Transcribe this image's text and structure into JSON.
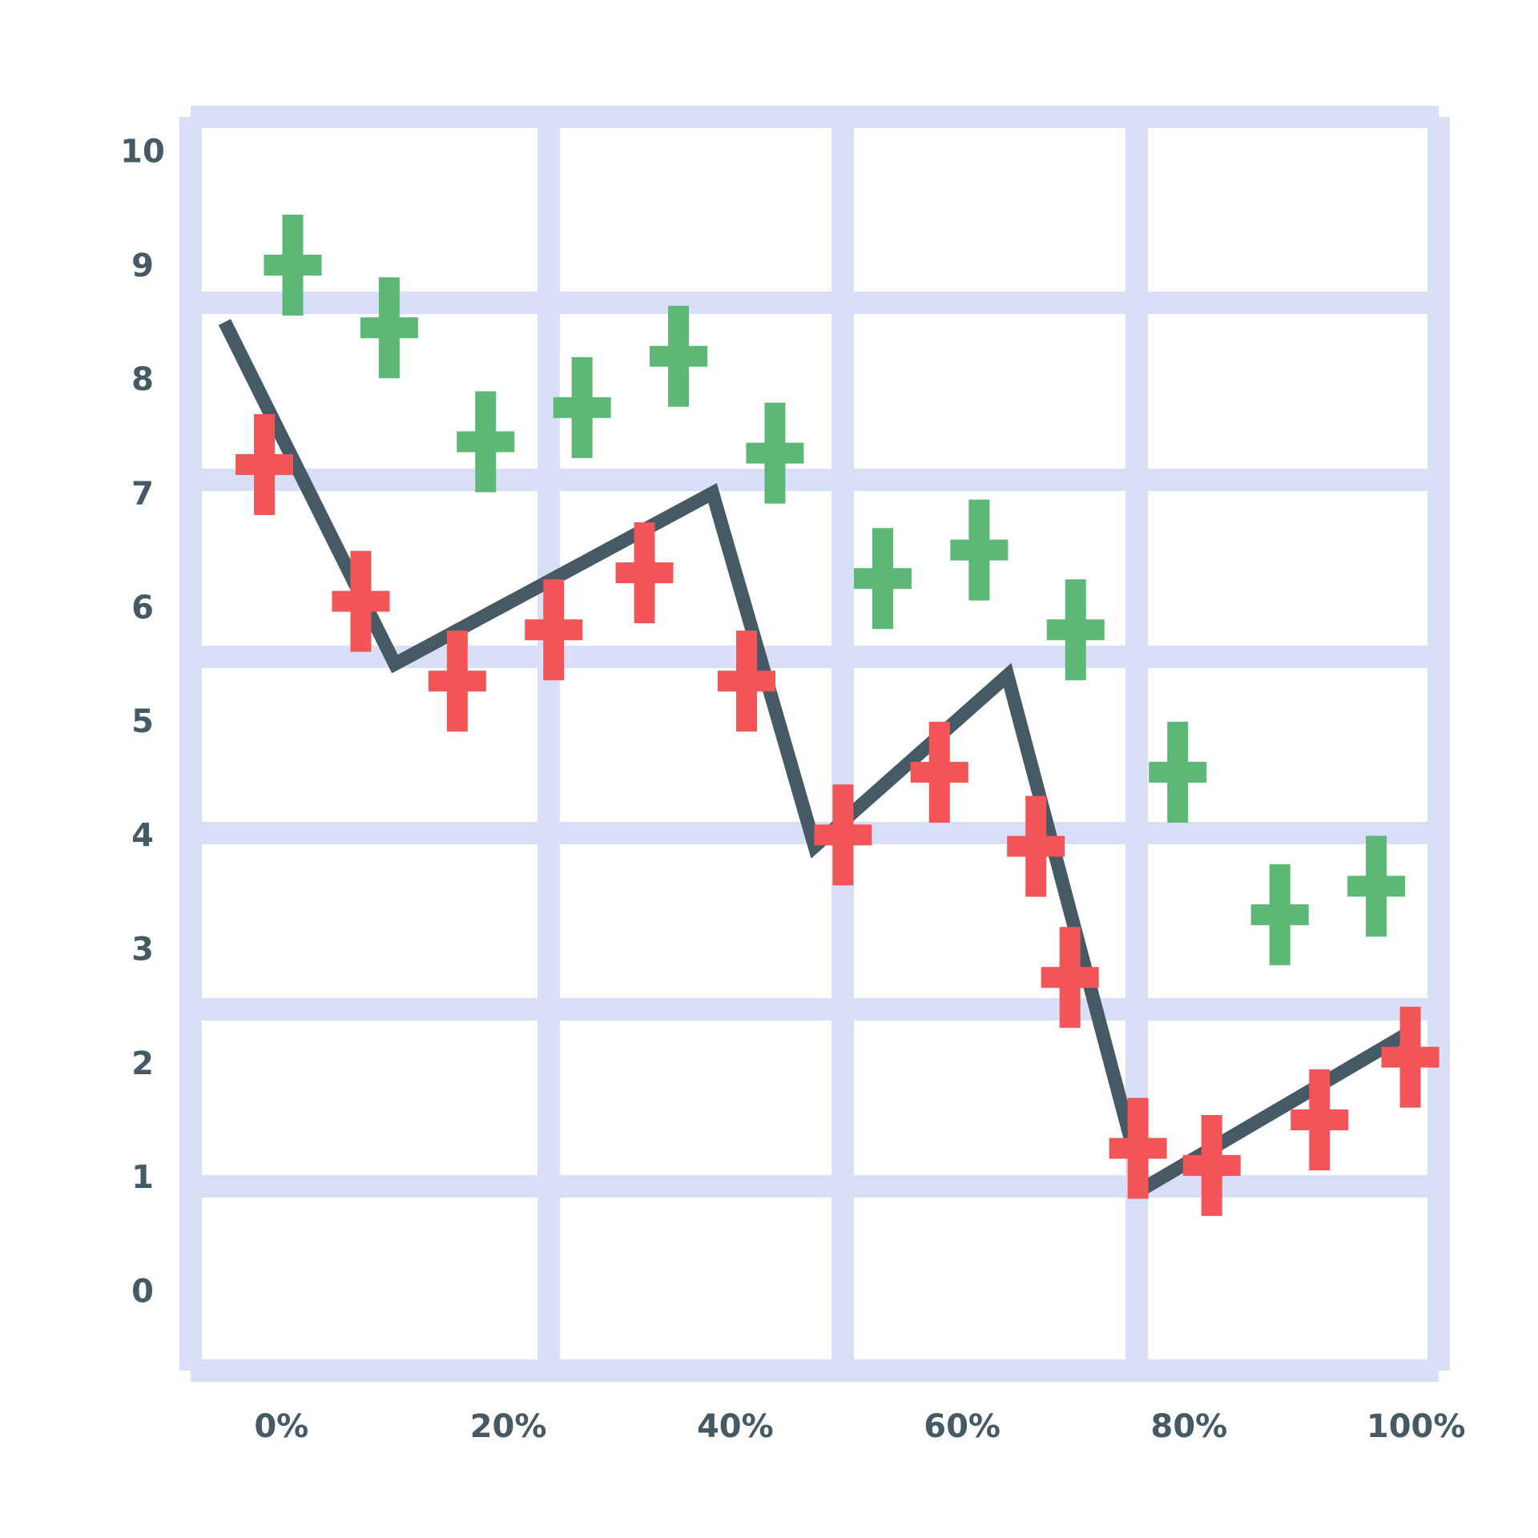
{
  "colors": {
    "grid": "#dadff8",
    "line": "#455a64",
    "series_red": "#f25557",
    "series_green": "#5cb874",
    "tick_text": "#455a64",
    "background": "#ffffff"
  },
  "chart_data": {
    "type": "line",
    "title": "",
    "xlabel": "",
    "ylabel": "",
    "grid": true,
    "x_format": "percent",
    "x_ticks": [
      0,
      20,
      40,
      60,
      80,
      100
    ],
    "x_tick_labels": [
      "0%",
      "20%",
      "40%",
      "60%",
      "80%",
      "100%"
    ],
    "y_ticks": [
      0,
      1,
      2,
      3,
      4,
      5,
      6,
      7,
      8,
      9,
      10
    ],
    "y_tick_labels": [
      "0",
      "1",
      "2",
      "3",
      "4",
      "5",
      "6",
      "7",
      "8",
      "9",
      "10"
    ],
    "xlim": [
      -8,
      102
    ],
    "ylim": [
      -0.7,
      10.3
    ],
    "series": [
      {
        "kind": "line",
        "color_key": "line",
        "points": [
          {
            "x": -5,
            "y": 8.5
          },
          {
            "x": 10,
            "y": 5.5
          },
          {
            "x": 38,
            "y": 7.0
          },
          {
            "x": 47,
            "y": 3.9
          },
          {
            "x": 64,
            "y": 5.4
          },
          {
            "x": 76,
            "y": 0.9
          },
          {
            "x": 100,
            "y": 2.3
          }
        ]
      },
      {
        "kind": "markers",
        "color_key": "series_red",
        "points": [
          {
            "x": -1.5,
            "y": 7.25
          },
          {
            "x": 7,
            "y": 6.05
          },
          {
            "x": 15.5,
            "y": 5.35
          },
          {
            "x": 24,
            "y": 5.8
          },
          {
            "x": 32,
            "y": 6.3
          },
          {
            "x": 41,
            "y": 5.35
          },
          {
            "x": 49.5,
            "y": 4.0
          },
          {
            "x": 58,
            "y": 4.55
          },
          {
            "x": 66.5,
            "y": 3.9
          },
          {
            "x": 69.5,
            "y": 2.75
          },
          {
            "x": 75.5,
            "y": 1.25
          },
          {
            "x": 82,
            "y": 1.1
          },
          {
            "x": 91.5,
            "y": 1.5
          },
          {
            "x": 99.5,
            "y": 2.05
          }
        ]
      },
      {
        "kind": "markers",
        "color_key": "series_green",
        "points": [
          {
            "x": 1,
            "y": 9.0
          },
          {
            "x": 9.5,
            "y": 8.45
          },
          {
            "x": 18,
            "y": 7.45
          },
          {
            "x": 26.5,
            "y": 7.75
          },
          {
            "x": 35,
            "y": 8.2
          },
          {
            "x": 43.5,
            "y": 7.35
          },
          {
            "x": 53,
            "y": 6.25
          },
          {
            "x": 61.5,
            "y": 6.5
          },
          {
            "x": 70,
            "y": 5.8
          },
          {
            "x": 79,
            "y": 4.55
          },
          {
            "x": 88,
            "y": 3.3
          },
          {
            "x": 96.5,
            "y": 3.55
          }
        ]
      }
    ]
  }
}
